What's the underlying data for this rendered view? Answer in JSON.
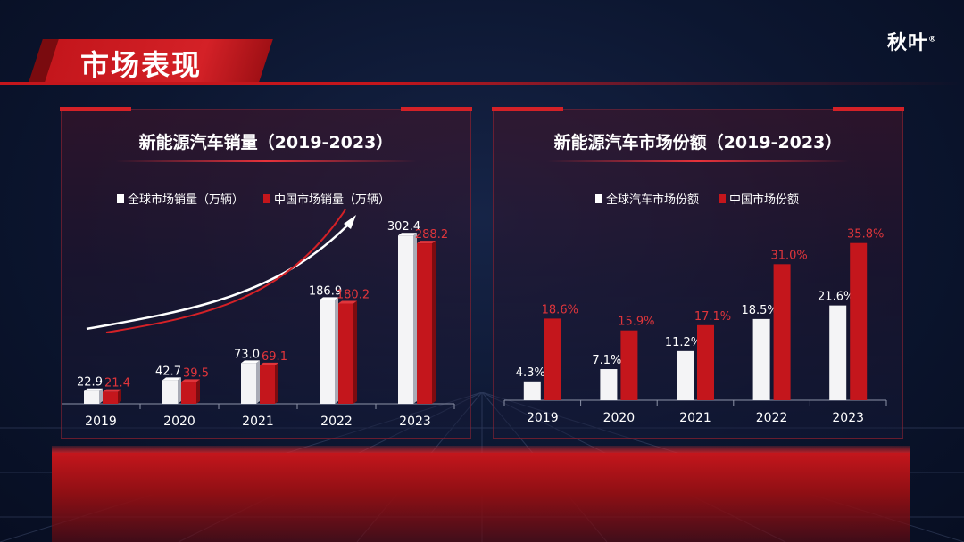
{
  "page": {
    "title": "市场表现",
    "logo": "秋叶",
    "logo_mark": "®"
  },
  "colors": {
    "accent": "#c4161c",
    "white_bar": "#ffffff",
    "red_bar": "#c4161c",
    "bg": "#0c1630"
  },
  "chart_data": [
    {
      "type": "bar",
      "title": "新能源汽车销量（2019-2023）",
      "categories": [
        "2019",
        "2020",
        "2021",
        "2022",
        "2023"
      ],
      "series": [
        {
          "name": "全球市场销量（万辆）",
          "values": [
            22.9,
            42.7,
            73.0,
            186.9,
            302.4
          ],
          "labels": [
            "22.9",
            "42.7",
            "73.0",
            "186.9",
            "302.4"
          ],
          "color": "#ffffff"
        },
        {
          "name": "中国市场销量（万辆）",
          "values": [
            21.4,
            39.5,
            69.1,
            180.2,
            288.2
          ],
          "labels": [
            "21.4",
            "39.5",
            "69.1",
            "180.2",
            "288.2"
          ],
          "color": "#c4161c"
        }
      ],
      "ylim": [
        0,
        330
      ],
      "legend": "top-center",
      "grid": false
    },
    {
      "type": "bar",
      "title": "新能源汽车市场份额（2019-2023）",
      "categories": [
        "2019",
        "2020",
        "2021",
        "2022",
        "2023"
      ],
      "series": [
        {
          "name": "全球汽车市场份额",
          "values": [
            4.3,
            7.1,
            11.2,
            18.5,
            21.6
          ],
          "labels": [
            "4.3%",
            "7.1%",
            "11.2%",
            "18.5%",
            "21.6%"
          ],
          "color": "#ffffff"
        },
        {
          "name": "中国市场份额",
          "values": [
            18.6,
            15.9,
            17.1,
            31.0,
            35.8
          ],
          "labels": [
            "18.6%",
            "15.9%",
            "17.1%",
            "31.0%",
            "35.8%"
          ],
          "color": "#c4161c"
        }
      ],
      "ylim": [
        0,
        40
      ],
      "legend": "top-center",
      "grid": false
    }
  ]
}
